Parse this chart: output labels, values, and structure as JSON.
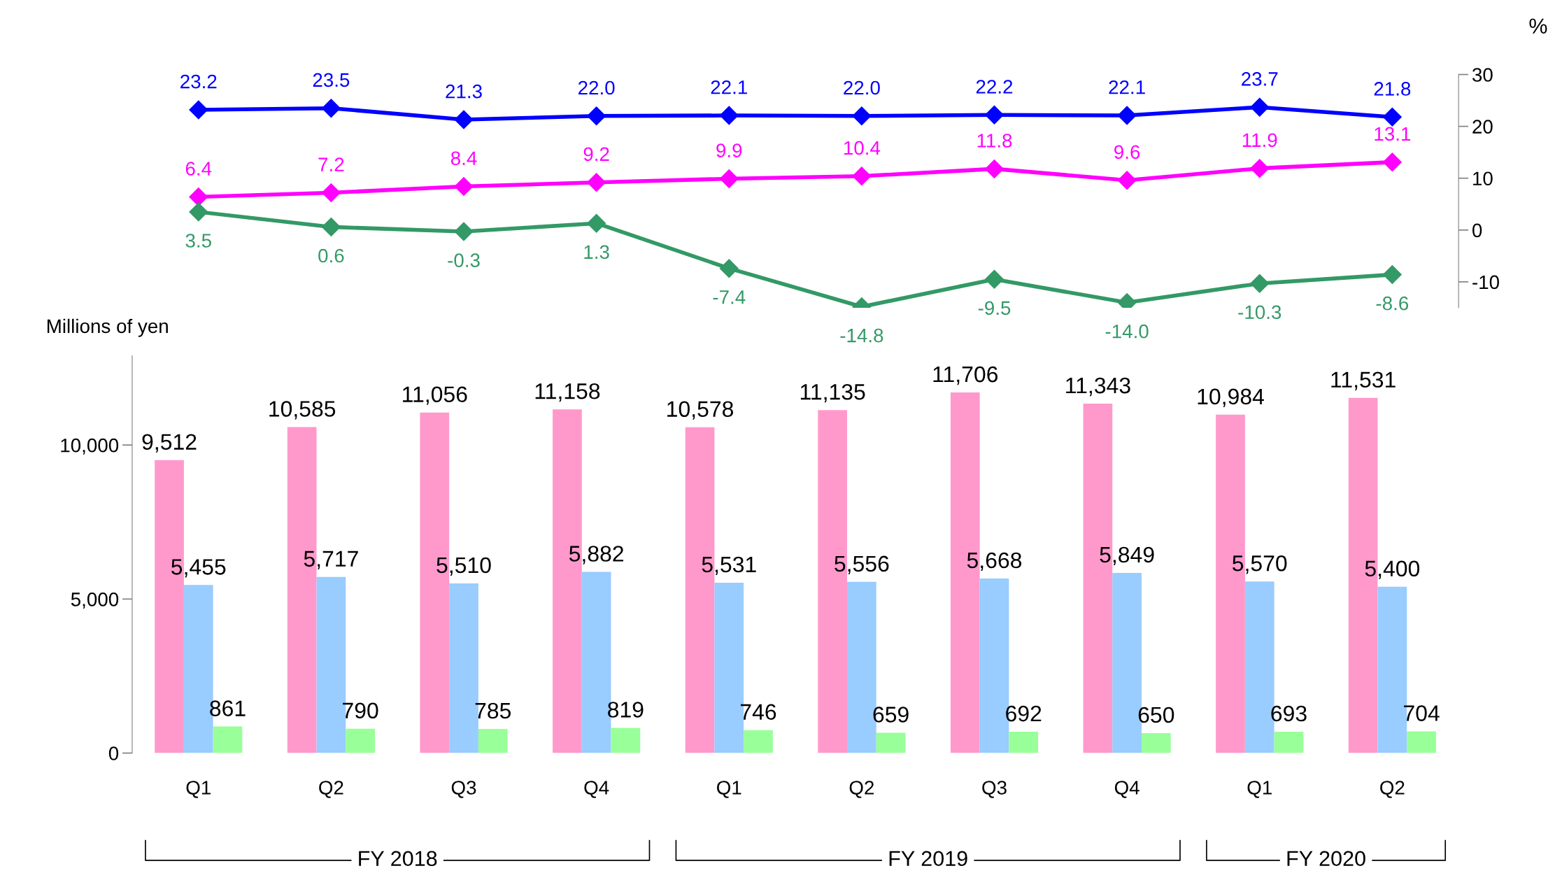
{
  "chart_data": [
    {
      "type": "line",
      "ylabel": "%",
      "categories": [
        null,
        null,
        null,
        null,
        null,
        null,
        null,
        null,
        null,
        null
      ],
      "ylim": [
        -15,
        30
      ],
      "yticks": [
        -10,
        0,
        10,
        20,
        30
      ],
      "marker": "diamond",
      "series": [
        {
          "color": "#0000ff",
          "values": [
            23.2,
            23.5,
            21.3,
            22.0,
            22.1,
            22.0,
            22.2,
            22.1,
            23.7,
            21.8
          ],
          "value_labels": [
            "23.2",
            "23.5",
            "21.3",
            "22.0",
            "22.1",
            "22.0",
            "22.2",
            "22.1",
            "23.7",
            "21.8"
          ]
        },
        {
          "color": "#ff00ff",
          "values": [
            6.4,
            7.2,
            8.4,
            9.2,
            9.9,
            10.4,
            11.8,
            9.6,
            11.9,
            13.1
          ],
          "value_labels": [
            "6.4",
            "7.2",
            "8.4",
            "9.2",
            "9.9",
            "10.4",
            "11.8",
            "9.6",
            "11.9",
            "13.1"
          ]
        },
        {
          "color": "#339966",
          "values": [
            3.5,
            0.6,
            -0.3,
            1.3,
            -7.4,
            -14.8,
            -9.5,
            -14.0,
            -10.3,
            -8.6
          ],
          "value_labels": [
            "3.5",
            "0.6",
            "-0.3",
            "1.3",
            "-7.4",
            "-14.8",
            "-9.5",
            "-14.0",
            "-10.3",
            "-8.6"
          ]
        }
      ]
    },
    {
      "type": "bar",
      "title": "Millions of yen",
      "categories": [
        "Q1",
        "Q2",
        "Q3",
        "Q4",
        "Q1",
        "Q2",
        "Q3",
        "Q4",
        "Q1",
        "Q2"
      ],
      "ylim": [
        0,
        12900
      ],
      "yticks": [
        {
          "value": 0,
          "label": "0"
        },
        {
          "value": 5000,
          "label": "5,000"
        },
        {
          "value": 10000,
          "label": "10,000"
        }
      ],
      "series": [
        {
          "color": "#ff99cc",
          "values": [
            9512,
            10585,
            11056,
            11158,
            10578,
            11135,
            11706,
            11343,
            10984,
            11531
          ],
          "value_labels": [
            "9,512",
            "10,585",
            "11,056",
            "11,158",
            "10,578",
            "11,135",
            "11,706",
            "11,343",
            "10,984",
            "11,531"
          ]
        },
        {
          "color": "#99ccff",
          "values": [
            5455,
            5717,
            5510,
            5882,
            5531,
            5556,
            5668,
            5849,
            5570,
            5400
          ],
          "value_labels": [
            "5,455",
            "5,717",
            "5,510",
            "5,882",
            "5,531",
            "5,556",
            "5,668",
            "5,849",
            "5,570",
            "5,400"
          ]
        },
        {
          "color": "#99ff99",
          "values": [
            861,
            790,
            785,
            819,
            746,
            659,
            692,
            650,
            693,
            704
          ],
          "value_labels": [
            "861",
            "790",
            "785",
            "819",
            "746",
            "659",
            "692",
            "650",
            "693",
            "704"
          ]
        }
      ],
      "annotations": [
        "FY 2018",
        "FY 2019",
        "FY 2020"
      ]
    }
  ]
}
